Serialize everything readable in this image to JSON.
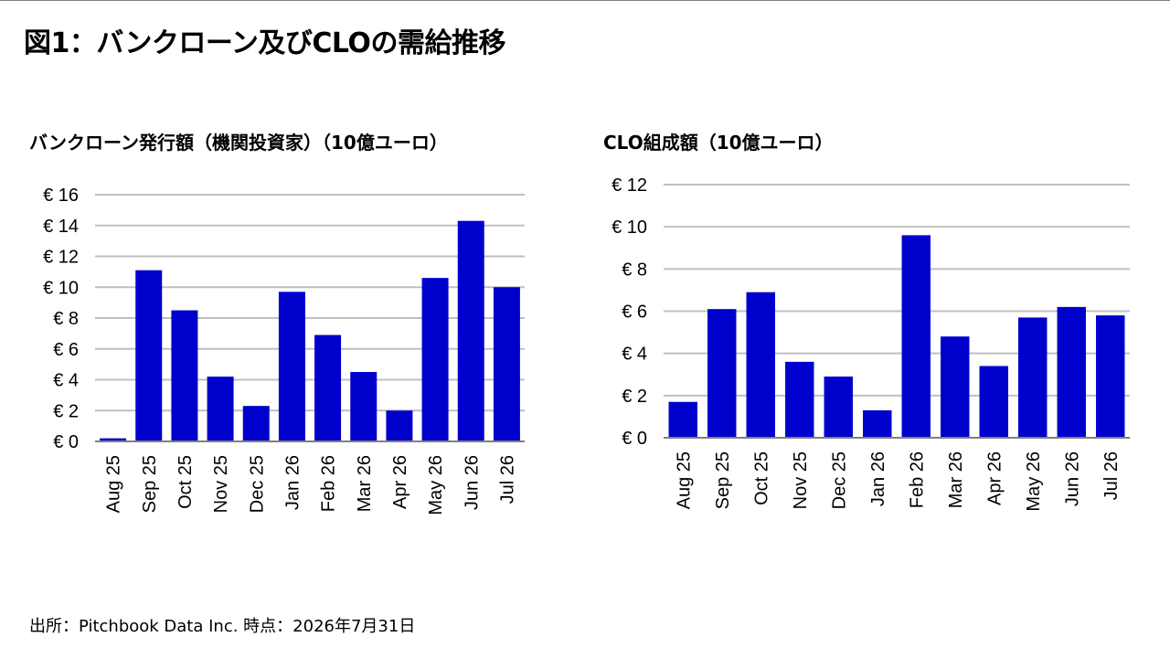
{
  "page_title": "図1：バンクローン及びCLOの需給推移",
  "source_note": "出所：Pitchbook Data Inc. 時点：2026年7月31日",
  "colors": {
    "bar": "#0000cc",
    "grid": "#bfbfbf",
    "axis": "#7f7f7f"
  },
  "chart_data": [
    {
      "type": "bar",
      "title": "バンクローン発行額（機関投資家）（10億ユーロ）",
      "xlabel": "",
      "ylabel": "",
      "categories": [
        "Aug 25",
        "Sep 25",
        "Oct 25",
        "Nov 25",
        "Dec 25",
        "Jan 26",
        "Feb 26",
        "Mar 26",
        "Apr 26",
        "May 26",
        "Jun 26",
        "Jul 26"
      ],
      "values": [
        0.2,
        11.1,
        8.5,
        4.2,
        2.3,
        9.7,
        6.9,
        4.5,
        2.0,
        10.6,
        14.3,
        10.0
      ],
      "ylim": [
        0,
        16
      ],
      "yticks": [
        0,
        2,
        4,
        6,
        8,
        10,
        12,
        14,
        16
      ],
      "ytick_labels": [
        "€ 0",
        "€ 2",
        "€ 4",
        "€ 6",
        "€ 8",
        "€ 10",
        "€ 12",
        "€ 14",
        "€ 16"
      ],
      "grid": true,
      "legend": "none"
    },
    {
      "type": "bar",
      "title": "CLO組成額（10億ユーロ）",
      "xlabel": "",
      "ylabel": "",
      "categories": [
        "Aug 25",
        "Sep 25",
        "Oct 25",
        "Nov 25",
        "Dec 25",
        "Jan 26",
        "Feb 26",
        "Mar 26",
        "Apr 26",
        "May 26",
        "Jun 26",
        "Jul 26"
      ],
      "values": [
        1.7,
        6.1,
        6.9,
        3.6,
        2.9,
        1.3,
        9.6,
        4.8,
        3.4,
        5.7,
        6.2,
        5.8
      ],
      "ylim": [
        0,
        12
      ],
      "yticks": [
        0,
        2,
        4,
        6,
        8,
        10,
        12
      ],
      "ytick_labels": [
        "€ 0",
        "€ 2",
        "€ 4",
        "€ 6",
        "€ 8",
        "€ 10",
        "€ 12"
      ],
      "grid": true,
      "legend": "none"
    }
  ]
}
